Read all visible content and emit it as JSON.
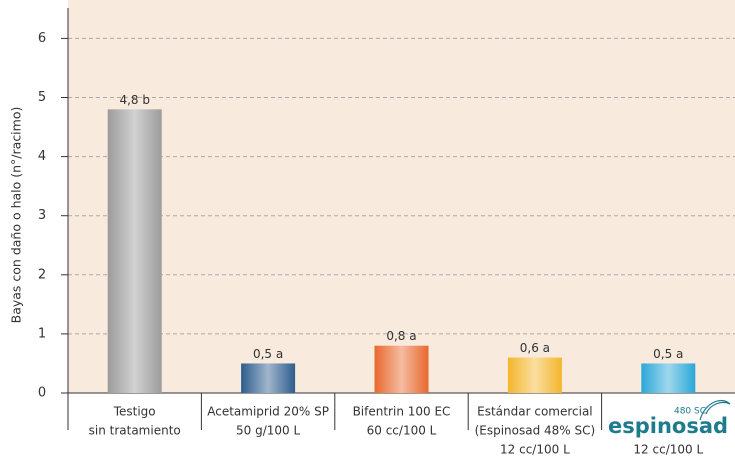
{
  "chart_data": {
    "type": "bar",
    "y_label": "Bayas con daño o halo (n°/racimo)",
    "categories": [
      [
        "Testigo",
        "sin tratamiento"
      ],
      [
        "Acetamiprid 20% SP",
        "50 g/100 L"
      ],
      [
        "Bifentrin 100 EC",
        "60 cc/100 L"
      ],
      [
        "Estándar comercial",
        "(Espinosad 48% SC)",
        "12 cc/100 L"
      ],
      [
        "12 cc/100 L"
      ]
    ],
    "logo": {
      "name": "espinosad",
      "grade": "480 SC"
    },
    "values": [
      4.8,
      0.5,
      0.8,
      0.6,
      0.5
    ],
    "value_labels": [
      "4,8 b",
      "0,5 a",
      "0,8 a",
      "0,6 a",
      "0,5 a"
    ],
    "colors": [
      "#9b9b9b",
      "#2d5d8e",
      "#e8682d",
      "#f4b62c",
      "#2aa7d7"
    ],
    "ylim": [
      0,
      6.65
    ],
    "yticks": [
      0,
      1,
      2,
      3,
      4,
      5,
      6
    ],
    "grid": true
  }
}
